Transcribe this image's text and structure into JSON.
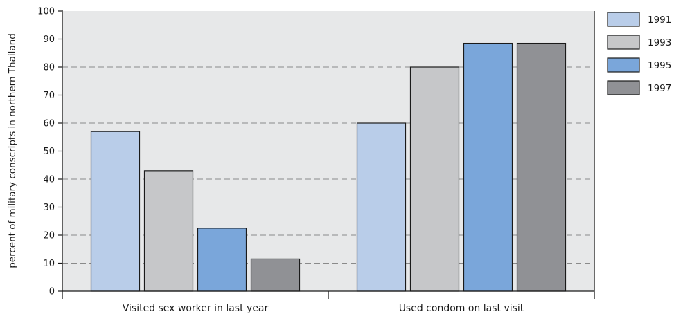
{
  "chart_data": {
    "type": "bar",
    "categories": [
      "Visited sex worker in last year",
      "Used condom on last visit"
    ],
    "series": [
      {
        "name": "1991",
        "values": [
          57,
          60
        ],
        "color": "#b9cde9"
      },
      {
        "name": "1993",
        "values": [
          43,
          80
        ],
        "color": "#c6c7c9"
      },
      {
        "name": "1995",
        "values": [
          22.5,
          88.5
        ],
        "color": "#7aa6da"
      },
      {
        "name": "1997",
        "values": [
          11.5,
          88.5
        ],
        "color": "#909195"
      }
    ],
    "title": "",
    "xlabel": "",
    "ylabel": "percent of military conscripts in northern Thailand",
    "ylim": [
      0,
      100
    ],
    "yticks": [
      0,
      10,
      20,
      30,
      40,
      50,
      60,
      70,
      80,
      90,
      100
    ],
    "grid": true,
    "legend_position": "right",
    "plot_background": "#e7e8e9"
  }
}
